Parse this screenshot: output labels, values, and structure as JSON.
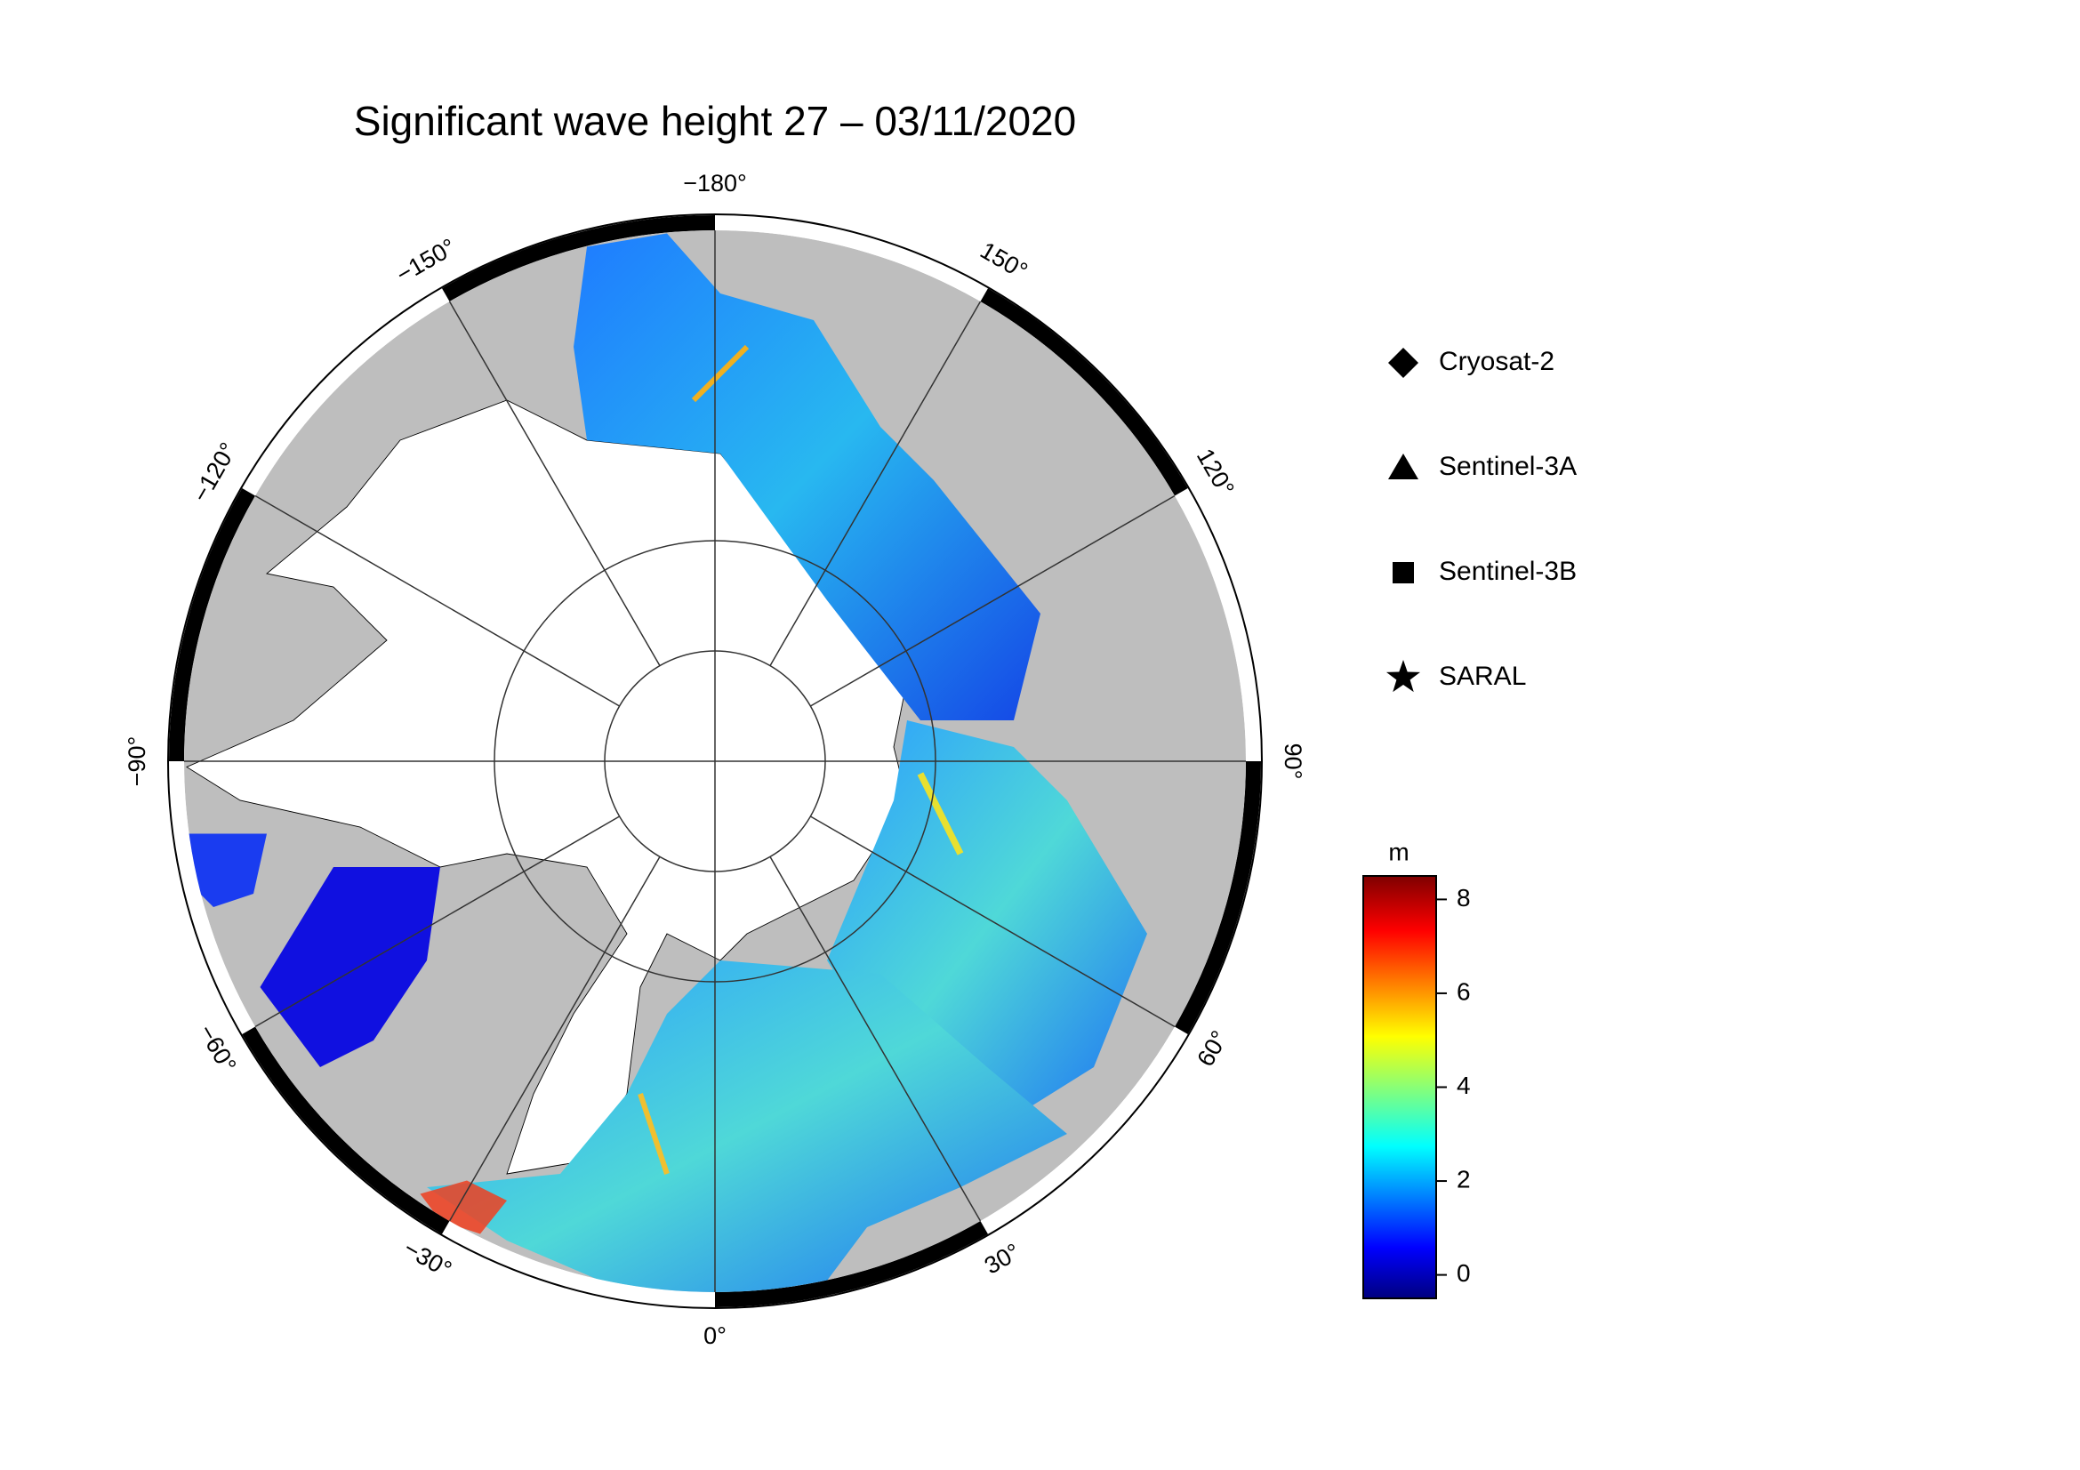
{
  "map": {
    "title": "Significant wave height 27 – 03/11/2020",
    "lon_ticks": [
      {
        "value": -180,
        "label": "−180°"
      },
      {
        "value": -150,
        "label": "−150°"
      },
      {
        "value": -120,
        "label": "−120°"
      },
      {
        "value": -90,
        "label": "−90°"
      },
      {
        "value": -60,
        "label": "−60°"
      },
      {
        "value": -30,
        "label": "−30°"
      },
      {
        "value": 0,
        "label": "0°"
      },
      {
        "value": 30,
        "label": "30°"
      },
      {
        "value": 60,
        "label": "60°"
      },
      {
        "value": 90,
        "label": "90°"
      },
      {
        "value": 120,
        "label": "120°"
      },
      {
        "value": 150,
        "label": "150°"
      }
    ],
    "legend": [
      {
        "name": "Cryosat-2",
        "marker": "diamond"
      },
      {
        "name": "Sentinel-3A",
        "marker": "triangle"
      },
      {
        "name": "Sentinel-3B",
        "marker": "square"
      },
      {
        "name": "SARAL",
        "marker": "star"
      }
    ],
    "colorbar": {
      "unit": "m",
      "clim": [
        -0.5,
        8.5
      ],
      "ticks": [
        0,
        2,
        4,
        6,
        8
      ]
    }
  }
}
